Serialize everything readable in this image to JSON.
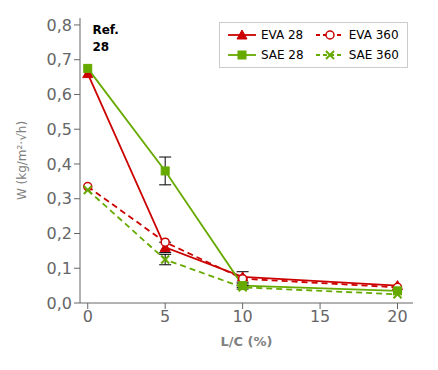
{
  "chart_data": {
    "type": "line",
    "x": [
      0,
      5,
      10,
      20
    ],
    "series": [
      {
        "name": "EVA 28",
        "color": "#cc0000",
        "values": [
          0.66,
          0.16,
          0.075,
          0.05
        ],
        "errors": [
          0.0,
          0.015,
          0.015,
          0.0
        ],
        "marker": "triangle",
        "line_style": "solid"
      },
      {
        "name": "EVA 360",
        "color": "#cc0000",
        "values": [
          0.335,
          0.175,
          0.07,
          0.045
        ],
        "errors": [
          0.0,
          0.0,
          0.0,
          0.0
        ],
        "marker": "circle",
        "line_style": "dashed"
      },
      {
        "name": "SAE 28",
        "color": "#66aa00",
        "values": [
          0.675,
          0.38,
          0.05,
          0.035
        ],
        "errors": [
          0.0,
          0.04,
          0.005,
          0.0
        ],
        "marker": "square",
        "line_style": "solid"
      },
      {
        "name": "SAE 360",
        "color": "#66aa00",
        "values": [
          0.325,
          0.125,
          0.045,
          0.025
        ],
        "errors": [
          0.0,
          0.015,
          0.005,
          0.0
        ],
        "marker": "x",
        "line_style": "dashed"
      }
    ],
    "xlabel": "L/C (%)",
    "ylabel": "W (kg/m²·√h)",
    "xlim": [
      -0.5,
      21
    ],
    "ylim": [
      0.0,
      0.82
    ],
    "xticks": [
      0,
      5,
      10,
      15,
      20
    ],
    "yticks": [
      {
        "value": 0.0,
        "label": "0,0"
      },
      {
        "value": 0.1,
        "label": "0,1"
      },
      {
        "value": 0.2,
        "label": "0,2"
      },
      {
        "value": 0.3,
        "label": "0,3"
      },
      {
        "value": 0.4,
        "label": "0,4"
      },
      {
        "value": 0.5,
        "label": "0,5"
      },
      {
        "value": 0.6,
        "label": "0,6"
      },
      {
        "value": 0.7,
        "label": "0,7"
      },
      {
        "value": 0.8,
        "label": "0,8"
      }
    ],
    "annotations": [
      {
        "text": "Ref.",
        "x": 0.3,
        "y": 0.775
      },
      {
        "text": "28",
        "x": 0.3,
        "y": 0.725
      }
    ],
    "legend": "upper right"
  }
}
